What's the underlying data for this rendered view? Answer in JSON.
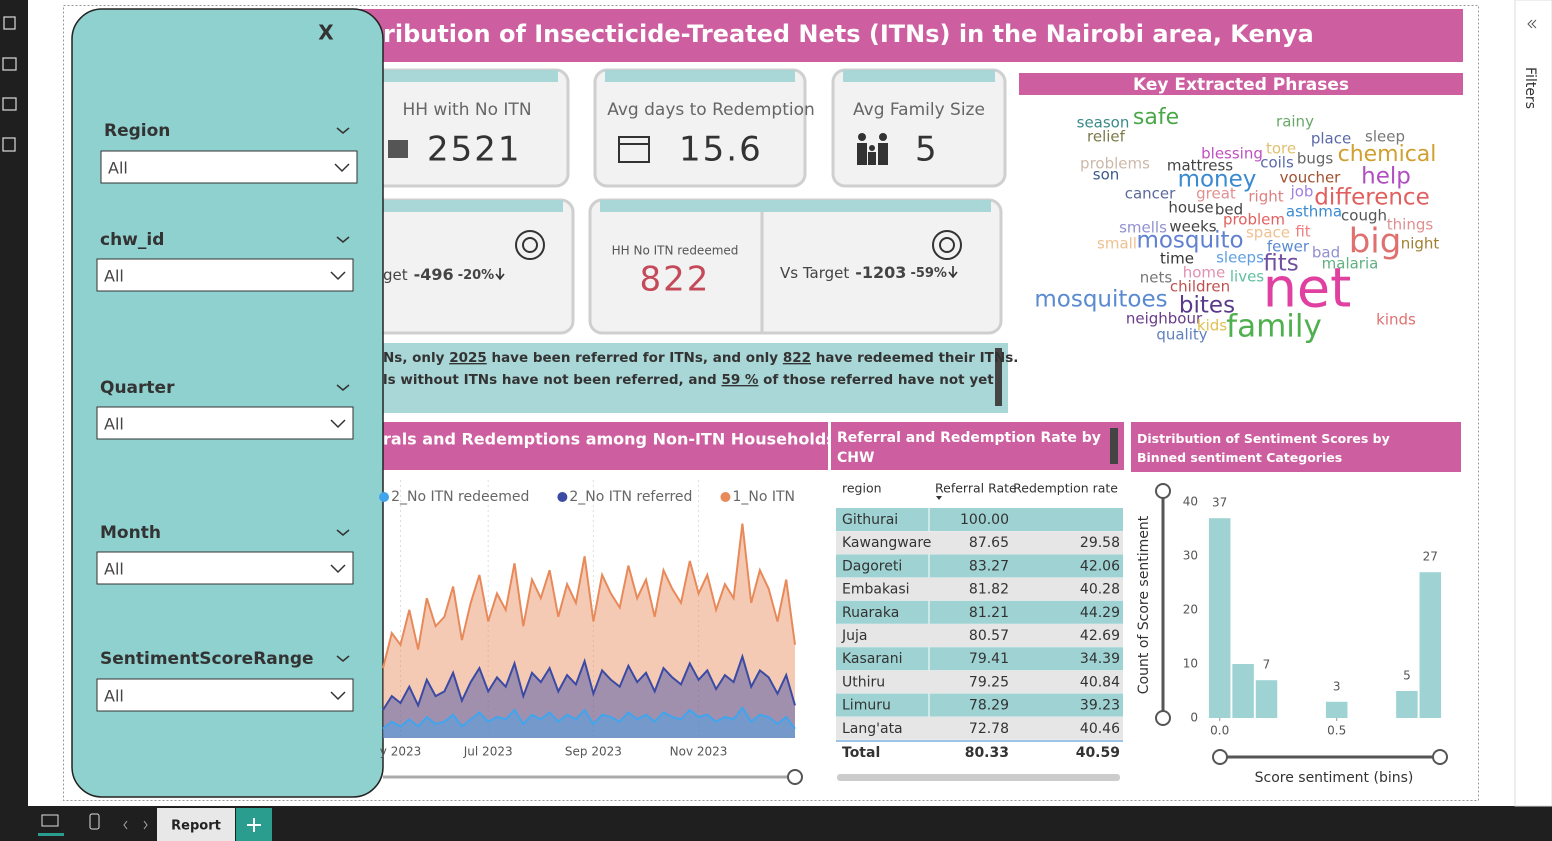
{
  "header": {
    "title": "ribution of Insecticide-Treated Nets (ITNs) in the Nairobi area, Kenya"
  },
  "slicer_panel": {
    "close": "X",
    "filters": [
      {
        "label": "Region",
        "value": "All"
      },
      {
        "label": "chw_id",
        "value": "All"
      },
      {
        "label": "Quarter",
        "value": "All"
      },
      {
        "label": "Month",
        "value": "All"
      },
      {
        "label": "SentimentScoreRange",
        "value": "All"
      }
    ]
  },
  "kpis": [
    {
      "label": "HH with No ITN",
      "value": "2521"
    },
    {
      "label": "Avg days to Redemption",
      "value": "15.6"
    },
    {
      "label": "Avg Family Size",
      "value": "5"
    }
  ],
  "targets": [
    {
      "label": "get",
      "delta": "-496",
      "pct": "-20%"
    },
    {
      "label": "HH No ITN redeemed",
      "value": "822"
    },
    {
      "label": "Vs Target",
      "delta": "-1203",
      "pct": "-59%"
    }
  ],
  "narrative": [
    [
      "Ns, only ",
      "2025",
      " have been referred for ITNs, and only ",
      "822",
      " have redeemed their ITNs."
    ],
    [
      "ls without  ITNs have not been referred, and ",
      "59 %",
      " of those referred have not yet"
    ]
  ],
  "word_cloud": {
    "title": "Key Extracted Phrases",
    "words": [
      {
        "text": "season",
        "color": "#3a8a8a"
      },
      {
        "text": "safe",
        "color": "#4aa84a"
      },
      {
        "text": "rainy",
        "color": "#6aa86a"
      },
      {
        "text": "relief",
        "color": "#7a7a4a"
      },
      {
        "text": "place",
        "color": "#5a6aa8"
      },
      {
        "text": "sleep",
        "color": "#777777"
      },
      {
        "text": "blessing",
        "color": "#c050c0"
      },
      {
        "text": "tore",
        "color": "#e0c070"
      },
      {
        "text": "bugs",
        "color": "#666666"
      },
      {
        "text": "chemical",
        "color": "#d0a030"
      },
      {
        "text": "problems",
        "color": "#ccb8a8"
      },
      {
        "text": "mattress",
        "color": "#444444"
      },
      {
        "text": "coils",
        "color": "#5a6aa8"
      },
      {
        "text": "son",
        "color": "#3a5a8a"
      },
      {
        "text": "money",
        "color": "#3a8ad0"
      },
      {
        "text": "voucher",
        "color": "#a05030"
      },
      {
        "text": "help",
        "color": "#b050c0"
      },
      {
        "text": "cancer",
        "color": "#5a6a9a"
      },
      {
        "text": "great",
        "color": "#e09090"
      },
      {
        "text": "right",
        "color": "#e08080"
      },
      {
        "text": "job",
        "color": "#a080e0"
      },
      {
        "text": "difference",
        "color": "#e06060"
      },
      {
        "text": "house",
        "color": "#444444"
      },
      {
        "text": "bed",
        "color": "#444444"
      },
      {
        "text": "asthma",
        "color": "#3a8ad0"
      },
      {
        "text": "cough",
        "color": "#555555"
      },
      {
        "text": "smells",
        "color": "#9090d0"
      },
      {
        "text": "weeks",
        "color": "#444444"
      },
      {
        "text": "problem",
        "color": "#e06060"
      },
      {
        "text": "things",
        "color": "#e09090"
      },
      {
        "text": "space",
        "color": "#f0c090"
      },
      {
        "text": "fit",
        "color": "#f08080"
      },
      {
        "text": "small",
        "color": "#f0c090"
      },
      {
        "text": "mosquito",
        "color": "#6080d0"
      },
      {
        "text": "fewer",
        "color": "#5a8ad0"
      },
      {
        "text": "big",
        "color": "#e07070"
      },
      {
        "text": "night",
        "color": "#a08030"
      },
      {
        "text": "time",
        "color": "#333333"
      },
      {
        "text": "sleeps",
        "color": "#60a0e0"
      },
      {
        "text": "bad",
        "color": "#9090d0"
      },
      {
        "text": "fits",
        "color": "#7050a0"
      },
      {
        "text": "malaria",
        "color": "#60b080"
      },
      {
        "text": "home",
        "color": "#e090b0"
      },
      {
        "text": "nets",
        "color": "#777777"
      },
      {
        "text": "lives",
        "color": "#60c0a0"
      },
      {
        "text": "net",
        "color": "#e040a0"
      },
      {
        "text": "children",
        "color": "#c05050"
      },
      {
        "text": "mosquitoes",
        "color": "#5a8ad0"
      },
      {
        "text": "bites",
        "color": "#5a3a8a"
      },
      {
        "text": "neighbour",
        "color": "#6a3a8a"
      },
      {
        "text": "kids",
        "color": "#e0c050"
      },
      {
        "text": "family",
        "color": "#50b050"
      },
      {
        "text": "kinds",
        "color": "#e07070"
      },
      {
        "text": "quality",
        "color": "#6080c0"
      }
    ]
  },
  "chart_data": [
    {
      "type": "line",
      "title": "rals and Redemptions among Non-ITN Households",
      "legend": "top-right",
      "categories": [
        null,
        null,
        "y 2023",
        null,
        null,
        null,
        null,
        null,
        null,
        null,
        null,
        null,
        "Jul 2023",
        null,
        null,
        null,
        null,
        null,
        null,
        null,
        null,
        null,
        null,
        null,
        "Sep 2023",
        null,
        null,
        null,
        null,
        null,
        null,
        null,
        null,
        null,
        null,
        null,
        "Nov 2023",
        null,
        null,
        null,
        null,
        null,
        null,
        null,
        null,
        null,
        null,
        null
      ],
      "ylim": [
        0,
        100
      ],
      "series": [
        {
          "name": "2_No ITN redeemed",
          "color": "#41a5ee",
          "values": [
            4,
            7,
            5,
            8,
            5,
            9,
            6,
            7,
            10,
            5,
            8,
            11,
            7,
            9,
            8,
            12,
            6,
            10,
            8,
            11,
            7,
            10,
            8,
            12,
            6,
            10,
            9,
            7,
            11,
            8,
            10,
            7,
            11,
            9,
            8,
            12,
            9,
            10,
            7,
            9,
            8,
            13,
            7,
            10,
            9,
            6,
            9,
            4
          ]
        },
        {
          "name": "2_No ITN referred",
          "color": "#3b4aa3",
          "values": [
            12,
            18,
            15,
            22,
            14,
            25,
            18,
            20,
            28,
            16,
            24,
            30,
            20,
            26,
            22,
            32,
            18,
            28,
            24,
            30,
            20,
            27,
            23,
            33,
            19,
            29,
            25,
            22,
            31,
            24,
            28,
            20,
            30,
            26,
            23,
            32,
            25,
            29,
            21,
            27,
            24,
            35,
            22,
            29,
            26,
            19,
            27,
            14
          ]
        },
        {
          "name": "1_No ITN",
          "color": "#e8895a",
          "values": [
            30,
            45,
            40,
            55,
            38,
            60,
            48,
            52,
            65,
            42,
            58,
            70,
            50,
            62,
            55,
            75,
            48,
            68,
            60,
            72,
            52,
            66,
            58,
            78,
            50,
            70,
            62,
            56,
            74,
            60,
            68,
            52,
            72,
            64,
            58,
            76,
            62,
            70,
            55,
            66,
            60,
            92,
            58,
            72,
            64,
            50,
            68,
            40
          ]
        }
      ]
    },
    {
      "type": "bar",
      "title": "Distribution of Sentiment Scores by Binned sentiment Categories",
      "xlabel": "Score sentiment (bins)",
      "ylabel": "Count of Score sentiment",
      "color": "#9fd3d3",
      "x": [
        0,
        0.1,
        0.2,
        0.5,
        0.8,
        0.9
      ],
      "values": [
        37,
        10,
        7,
        3,
        5,
        27
      ],
      "value_labels": [
        "37",
        null,
        "7",
        "3",
        "5",
        "27"
      ],
      "xlim": [
        -0.05,
        0.95
      ],
      "xticks": [
        {
          "value": 0,
          "label": "0.0"
        },
        {
          "value": 0.5,
          "label": "0.5"
        }
      ],
      "ylim": [
        0,
        40
      ],
      "yticks": [
        0,
        10,
        20,
        30,
        40
      ]
    }
  ],
  "table": {
    "title": "Referral and Redemption Rate by CHW",
    "columns": [
      "region",
      "Referral Rate",
      "Redemption rate"
    ],
    "rows": [
      [
        "Githurai",
        "100.00",
        null
      ],
      [
        "Kawangware",
        "87.65",
        "29.58"
      ],
      [
        "Dagoreti",
        "83.27",
        "42.06"
      ],
      [
        "Embakasi",
        "81.82",
        "40.28"
      ],
      [
        "Ruaraka",
        "81.21",
        "44.29"
      ],
      [
        "Juja",
        "80.57",
        "42.69"
      ],
      [
        "Kasarani",
        "79.41",
        "34.39"
      ],
      [
        "Uthiru",
        "79.25",
        "40.84"
      ],
      [
        "Limuru",
        "78.29",
        "39.23"
      ],
      [
        "Lang'ata",
        "72.78",
        "40.46"
      ]
    ],
    "total": [
      "Total",
      "80.33",
      "40.59"
    ]
  },
  "tabs": {
    "active": "Report"
  },
  "filters_pane": {
    "label": "Filters"
  }
}
